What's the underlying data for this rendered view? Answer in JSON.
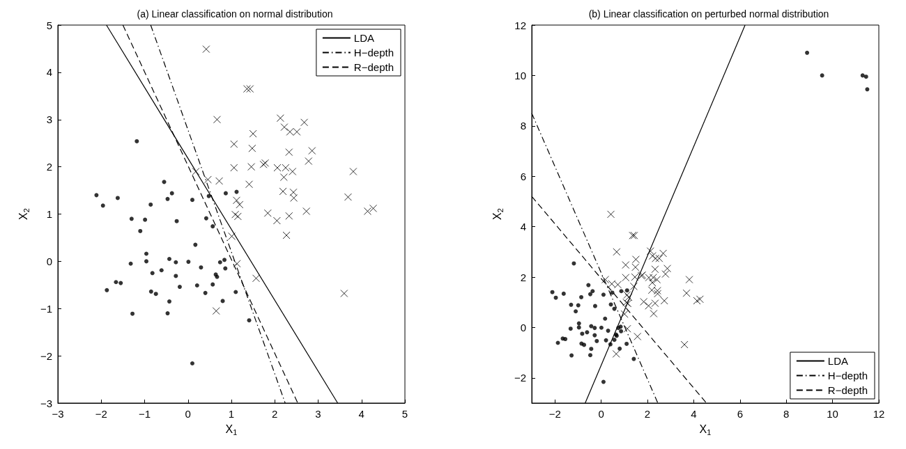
{
  "chart_data": [
    {
      "type": "scatter",
      "title": "(a) Linear classification on normal distribution",
      "xlabel": "X$_{1}$",
      "ylabel": "X$_{2}$",
      "xlim": [
        -3,
        5
      ],
      "ylim": [
        -3,
        5
      ],
      "xticks": [
        -3,
        -2,
        -1,
        0,
        1,
        2,
        3,
        4,
        5
      ],
      "yticks": [
        -3,
        -2,
        -1,
        0,
        1,
        2,
        3,
        4,
        5
      ],
      "legend": "top right",
      "series": [
        {
          "type": "scatter",
          "marker": "circle",
          "color": "#000000",
          "x": [
            -1.18,
            -0.55,
            -2.11,
            -1.96,
            -1.62,
            -0.86,
            -0.47,
            -0.37,
            0.1,
            0.48,
            0.87,
            1.12,
            -1.3,
            -0.99,
            -0.26,
            0.42,
            0.57,
            -1.1,
            0.17,
            -0.96,
            -1.32,
            -0.96,
            -0.43,
            -0.28,
            0.01,
            -0.82,
            -0.61,
            -0.28,
            0.3,
            0.74,
            0.84,
            0.86,
            0.64,
            0.67,
            -1.66,
            -1.55,
            -1.87,
            -0.85,
            -0.74,
            -0.19,
            0.21,
            0.57,
            0.4,
            1.1,
            0.8,
            -0.43,
            -0.47,
            -1.28,
            0.1,
            1.41
          ],
          "values": [
            2.54,
            1.68,
            1.4,
            1.18,
            1.34,
            1.2,
            1.32,
            1.44,
            1.3,
            1.38,
            1.44,
            1.47,
            0.9,
            0.88,
            0.85,
            0.91,
            0.74,
            0.64,
            0.35,
            0.16,
            -0.05,
            0.0,
            0.05,
            -0.02,
            -0.01,
            -0.25,
            -0.19,
            -0.31,
            -0.13,
            -0.02,
            0.03,
            -0.15,
            -0.28,
            -0.33,
            -0.44,
            -0.46,
            -0.61,
            -0.64,
            -0.69,
            -0.54,
            -0.51,
            -0.49,
            -0.67,
            -0.65,
            -0.84,
            -0.85,
            -1.1,
            -1.11,
            -2.16,
            -1.25
          ]
        },
        {
          "type": "scatter",
          "marker": "cross",
          "color": "#000000",
          "x": [
            0.42,
            0.67,
            1.06,
            1.06,
            0.18,
            0.46,
            0.72,
            1.36,
            1.43,
            2.13,
            2.22,
            2.35,
            2.51,
            2.68,
            1.5,
            1.48,
            2.33,
            2.86,
            1.46,
            1.74,
            1.78,
            2.06,
            2.25,
            2.41,
            2.21,
            2.78,
            3.81,
            1.41,
            2.19,
            2.43,
            2.44,
            3.69,
            1.12,
            1.19,
            1.09,
            1.15,
            1.84,
            2.05,
            2.33,
            2.73,
            4.14,
            4.27,
            2.27,
            1.01,
            1.13,
            1.57,
            3.6,
            0.65
          ],
          "values": [
            4.49,
            3.0,
            2.48,
            1.98,
            1.9,
            1.73,
            1.7,
            3.65,
            3.65,
            3.03,
            2.84,
            2.74,
            2.74,
            2.94,
            2.7,
            2.39,
            2.31,
            2.34,
            2.0,
            2.05,
            2.08,
            1.98,
            1.98,
            1.9,
            1.78,
            2.12,
            1.9,
            1.63,
            1.48,
            1.46,
            1.34,
            1.36,
            1.29,
            1.2,
            0.99,
            0.95,
            1.02,
            0.86,
            0.96,
            1.06,
            1.06,
            1.12,
            0.55,
            0.53,
            -0.05,
            -0.36,
            -0.68,
            -1.05
          ]
        },
        {
          "type": "line",
          "name": "LDA",
          "color": "#000000",
          "line_style": "solid",
          "x": [
            -1.88,
            3.45
          ],
          "values": [
            5,
            -3
          ]
        },
        {
          "type": "line",
          "name": "H−depth",
          "color": "#000000",
          "line_style": "dashdot",
          "x": [
            -0.86,
            2.24
          ],
          "values": [
            5,
            -3
          ]
        },
        {
          "type": "line",
          "name": "R−depth",
          "color": "#000000",
          "line_style": "dashed",
          "x": [
            -1.5,
            2.53
          ],
          "values": [
            5,
            -3
          ]
        }
      ]
    },
    {
      "type": "scatter",
      "title": "(b) Linear classification on perturbed normal distribution",
      "xlabel": "X$_{1}$",
      "ylabel": "X$_{2}$",
      "xlim": [
        -3,
        12
      ],
      "ylim": [
        -3,
        12
      ],
      "xticks": [
        -2,
        0,
        2,
        4,
        6,
        8,
        10,
        12
      ],
      "yticks": [
        -2,
        0,
        2,
        4,
        6,
        8,
        10,
        12
      ],
      "legend": "bottom right",
      "series": [
        {
          "type": "scatter",
          "marker": "circle",
          "color": "#000000",
          "x": [
            -1.18,
            -0.55,
            -2.11,
            -1.96,
            -1.62,
            -0.86,
            -0.47,
            -0.37,
            0.1,
            0.48,
            0.87,
            1.12,
            -1.3,
            -0.99,
            -0.26,
            0.42,
            0.57,
            -1.1,
            0.17,
            -0.96,
            -1.32,
            -0.96,
            -0.43,
            -0.28,
            0.01,
            -0.82,
            -0.61,
            -0.28,
            0.3,
            0.74,
            0.84,
            0.86,
            0.64,
            0.67,
            -1.66,
            -1.55,
            -1.87,
            -0.85,
            -0.74,
            -0.19,
            0.21,
            0.57,
            0.4,
            1.1,
            0.8,
            -0.43,
            -0.47,
            -1.28,
            0.1,
            1.41,
            8.9,
            9.55,
            11.3,
            11.45,
            11.5
          ],
          "values": [
            2.54,
            1.68,
            1.4,
            1.18,
            1.34,
            1.2,
            1.32,
            1.44,
            1.3,
            1.38,
            1.44,
            1.47,
            0.9,
            0.88,
            0.85,
            0.91,
            0.74,
            0.64,
            0.35,
            0.16,
            -0.05,
            0.0,
            0.05,
            -0.02,
            -0.01,
            -0.25,
            -0.19,
            -0.31,
            -0.13,
            -0.02,
            0.03,
            -0.15,
            -0.28,
            -0.33,
            -0.44,
            -0.46,
            -0.61,
            -0.64,
            -0.69,
            -0.54,
            -0.51,
            -0.49,
            -0.67,
            -0.65,
            -0.84,
            -0.85,
            -1.1,
            -1.11,
            -2.16,
            -1.25,
            10.9,
            10.0,
            10.0,
            9.95,
            9.45
          ]
        },
        {
          "type": "scatter",
          "marker": "cross",
          "color": "#000000",
          "x": [
            0.42,
            0.67,
            1.06,
            1.06,
            0.18,
            0.46,
            0.72,
            1.36,
            1.43,
            2.13,
            2.22,
            2.35,
            2.51,
            2.68,
            1.5,
            1.48,
            2.33,
            2.86,
            1.46,
            1.74,
            1.78,
            2.06,
            2.25,
            2.41,
            2.21,
            2.78,
            3.81,
            1.41,
            2.19,
            2.43,
            2.44,
            3.69,
            1.12,
            1.19,
            1.09,
            1.15,
            1.84,
            2.05,
            2.33,
            2.73,
            4.14,
            4.27,
            2.27,
            1.01,
            1.13,
            1.57,
            3.6,
            0.65
          ],
          "values": [
            4.49,
            3.0,
            2.48,
            1.98,
            1.9,
            1.73,
            1.7,
            3.65,
            3.65,
            3.03,
            2.84,
            2.74,
            2.74,
            2.94,
            2.7,
            2.39,
            2.31,
            2.34,
            2.0,
            2.05,
            2.08,
            1.98,
            1.98,
            1.9,
            1.78,
            2.12,
            1.9,
            1.63,
            1.48,
            1.46,
            1.34,
            1.36,
            1.29,
            1.2,
            0.99,
            0.95,
            1.02,
            0.86,
            0.96,
            1.06,
            1.06,
            1.12,
            0.55,
            0.53,
            -0.05,
            -0.36,
            -0.68,
            -1.05
          ]
        },
        {
          "type": "line",
          "name": "LDA",
          "color": "#000000",
          "line_style": "solid",
          "x": [
            -0.69,
            6.22
          ],
          "values": [
            -3,
            12
          ]
        },
        {
          "type": "line",
          "name": "H−depth",
          "color": "#000000",
          "line_style": "dashdot",
          "x": [
            -3,
            2.45
          ],
          "values": [
            8.5,
            -3
          ]
        },
        {
          "type": "line",
          "name": "R−depth",
          "color": "#000000",
          "line_style": "dashed",
          "x": [
            -3,
            4.55
          ],
          "values": [
            5.2,
            -3
          ]
        }
      ]
    }
  ]
}
